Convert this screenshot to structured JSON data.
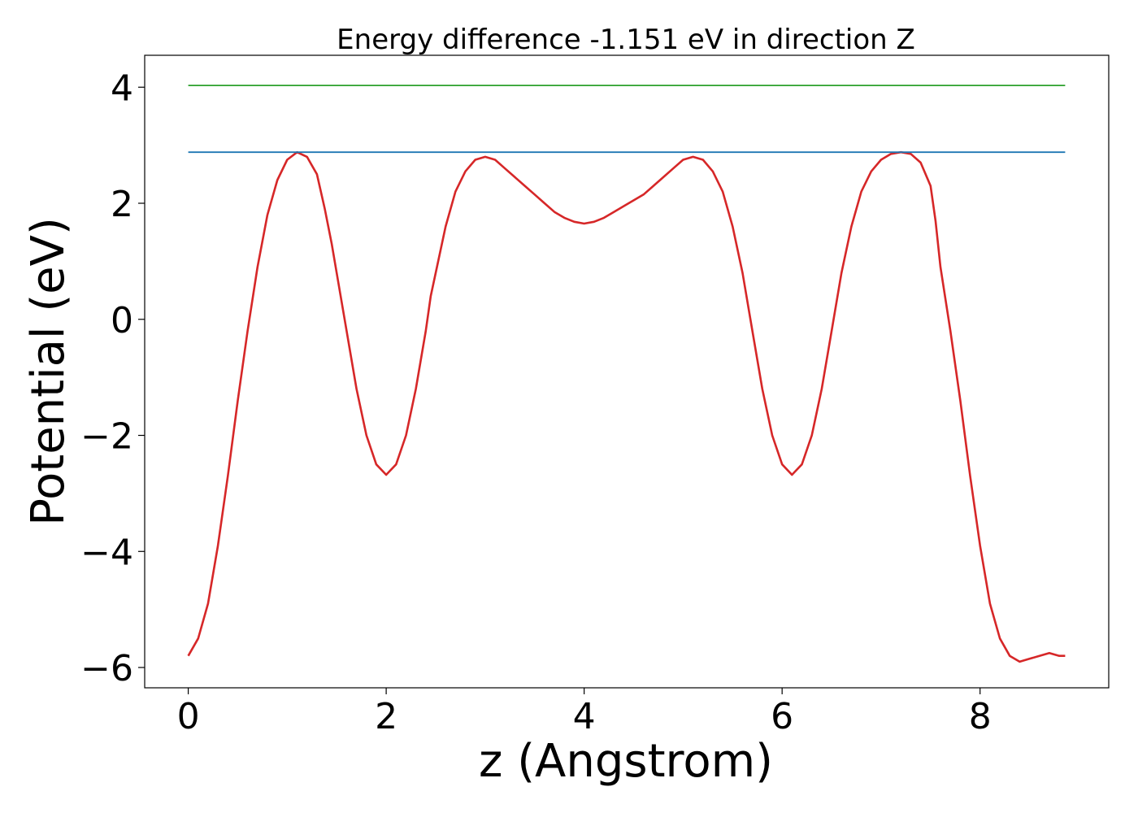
{
  "chart_data": {
    "type": "line",
    "title": "Energy difference -1.151 eV in direction Z",
    "xlabel": "z (Angstrom)",
    "ylabel": "Potential (eV)",
    "xlim": [
      -0.44,
      9.3
    ],
    "ylim": [
      -6.35,
      4.55
    ],
    "xticks": [
      0,
      2,
      4,
      6,
      8
    ],
    "yticks": [
      -6,
      -4,
      -2,
      0,
      2,
      4
    ],
    "xtick_labels": [
      "0",
      "2",
      "4",
      "6",
      "8"
    ],
    "ytick_labels": [
      "−6",
      "−4",
      "−2",
      "0",
      "2",
      "4"
    ],
    "grid": false,
    "legend": "none",
    "series": [
      {
        "color": "#d62728",
        "x": [
          0.0,
          0.1,
          0.2,
          0.3,
          0.4,
          0.5,
          0.6,
          0.7,
          0.8,
          0.9,
          1.0,
          1.1,
          1.2,
          1.3,
          1.38,
          1.45,
          1.5,
          1.6,
          1.7,
          1.8,
          1.9,
          2.0,
          2.1,
          2.2,
          2.3,
          2.4,
          2.45,
          2.5,
          2.6,
          2.7,
          2.8,
          2.9,
          3.0,
          3.1,
          3.2,
          3.3,
          3.4,
          3.5,
          3.6,
          3.7,
          3.8,
          3.9,
          4.0,
          4.1,
          4.2,
          4.3,
          4.45,
          4.6,
          4.7,
          4.8,
          4.9,
          5.0,
          5.1,
          5.2,
          5.3,
          5.4,
          5.5,
          5.6,
          5.7,
          5.8,
          5.9,
          6.0,
          6.1,
          6.2,
          6.3,
          6.4,
          6.5,
          6.6,
          6.7,
          6.8,
          6.9,
          7.0,
          7.1,
          7.2,
          7.3,
          7.4,
          7.5,
          7.55,
          7.6,
          7.7,
          7.8,
          7.9,
          8.0,
          8.1,
          8.2,
          8.3,
          8.4,
          8.5,
          8.6,
          8.7,
          8.8,
          8.86
        ],
        "y": [
          -5.8,
          -5.5,
          -4.9,
          -3.9,
          -2.7,
          -1.4,
          -0.2,
          0.9,
          1.8,
          2.4,
          2.75,
          2.88,
          2.8,
          2.5,
          1.9,
          1.3,
          0.8,
          -0.2,
          -1.2,
          -2.0,
          -2.5,
          -2.68,
          -2.5,
          -2.0,
          -1.2,
          -0.2,
          0.4,
          0.8,
          1.6,
          2.2,
          2.55,
          2.75,
          2.8,
          2.75,
          2.6,
          2.45,
          2.3,
          2.15,
          2.0,
          1.85,
          1.75,
          1.68,
          1.65,
          1.68,
          1.75,
          1.85,
          2.0,
          2.15,
          2.3,
          2.45,
          2.6,
          2.75,
          2.8,
          2.75,
          2.55,
          2.2,
          1.6,
          0.8,
          -0.2,
          -1.2,
          -2.0,
          -2.5,
          -2.68,
          -2.5,
          -2.0,
          -1.2,
          -0.2,
          0.8,
          1.6,
          2.2,
          2.55,
          2.75,
          2.85,
          2.88,
          2.85,
          2.7,
          2.3,
          1.7,
          0.9,
          -0.2,
          -1.4,
          -2.7,
          -3.9,
          -4.9,
          -5.5,
          -5.8,
          -5.9,
          -5.85,
          -5.8,
          -5.75,
          -5.8,
          -5.8
        ]
      },
      {
        "color": "#1f77b4",
        "x": [
          0.0,
          8.86
        ],
        "y": [
          2.88,
          2.88
        ]
      },
      {
        "color": "#2ca02c",
        "x": [
          0.0,
          8.86
        ],
        "y": [
          4.03,
          4.03
        ]
      }
    ]
  }
}
